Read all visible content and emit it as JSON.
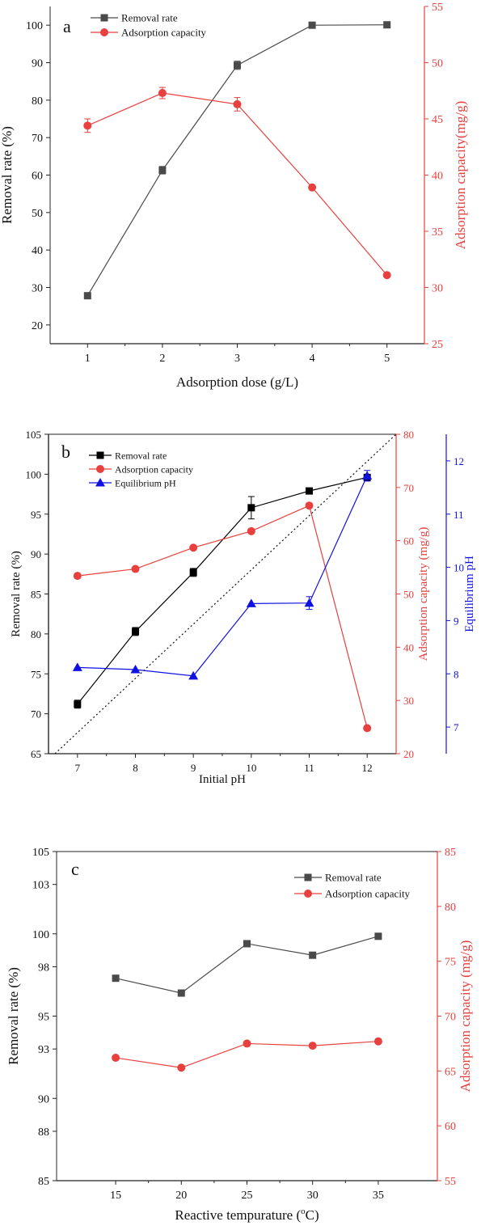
{
  "colors": {
    "removal_a": "#4a4a4a",
    "capacity_red": "#e8403e",
    "removal_b": "#000000",
    "equilibrium_blue": "#1010e0",
    "axis": "#222222"
  },
  "chart_data": [
    {
      "type": "line",
      "panel_label": "a",
      "xlabel": "Adsorption dose (g/L)",
      "ylabel": "Removal rate (%)",
      "y2label": "Adsorption capacity(mg/g)",
      "x": [
        1,
        2,
        3,
        4,
        5
      ],
      "xlim": [
        0.5,
        5.5
      ],
      "xticks": [
        "1",
        "2",
        "3",
        "4",
        "5"
      ],
      "ylim": [
        15,
        105
      ],
      "yticks": [
        "20",
        "30",
        "40",
        "50",
        "60",
        "70",
        "80",
        "90",
        "100"
      ],
      "y2lim": [
        25,
        55
      ],
      "y2ticks": [
        "25",
        "30",
        "35",
        "40",
        "45",
        "50",
        "55"
      ],
      "legend_position": "top-left",
      "series": [
        {
          "name": "Removal rate",
          "axis": "left",
          "marker": "square",
          "color": "#4a4a4a",
          "values": [
            27.8,
            61.3,
            89.3,
            100.0,
            100.1
          ],
          "errors": [
            0,
            1.0,
            1.1,
            0,
            0
          ]
        },
        {
          "name": "Adsorption capacity",
          "axis": "right",
          "marker": "circle",
          "color": "#e8403e",
          "values": [
            44.4,
            47.3,
            46.3,
            38.9,
            31.1
          ],
          "errors": [
            0.6,
            0.5,
            0.6,
            0,
            0
          ]
        }
      ]
    },
    {
      "type": "line",
      "panel_label": "b",
      "xlabel": "Initial pH",
      "ylabel": "Removal rate (%)",
      "y2label": "Adsorption capacity (mg/g)",
      "y3label": "Equilibrium pH",
      "x": [
        7,
        8,
        9,
        10,
        11,
        12
      ],
      "xlim": [
        6.5,
        12.5
      ],
      "xticks": [
        "7",
        "8",
        "9",
        "10",
        "11",
        "12"
      ],
      "ylim": [
        65,
        105
      ],
      "yticks": [
        "65",
        "70",
        "75",
        "80",
        "85",
        "90",
        "95",
        "100",
        "105"
      ],
      "y2lim": [
        20,
        80
      ],
      "y2ticks": [
        "20",
        "30",
        "40",
        "50",
        "60",
        "70",
        "80"
      ],
      "y3lim": [
        6.5,
        12.5
      ],
      "y3ticks": [
        "7",
        "8",
        "9",
        "10",
        "11",
        "12"
      ],
      "legend_position": "top-left",
      "reference_line": "dotted diagonal",
      "series": [
        {
          "name": "Removal rate",
          "axis": "left",
          "marker": "square",
          "color": "#000000",
          "values": [
            71.2,
            80.3,
            87.7,
            95.8,
            97.9,
            99.6
          ],
          "errors": [
            0.5,
            0.5,
            0.5,
            1.4,
            0,
            0
          ]
        },
        {
          "name": "Adsorption capacity",
          "axis": "right",
          "marker": "circle",
          "color": "#e8403e",
          "values": [
            53.4,
            54.7,
            58.7,
            61.8,
            66.6,
            24.8
          ],
          "errors": [
            0,
            0,
            0,
            0,
            0,
            0
          ]
        },
        {
          "name": "Equilibrium pH",
          "axis": "third",
          "marker": "triangle",
          "color": "#1010e0",
          "values": [
            8.12,
            8.08,
            7.96,
            9.32,
            9.33,
            11.72
          ],
          "errors": [
            0,
            0,
            0,
            0,
            0.12,
            0.1
          ]
        }
      ]
    },
    {
      "type": "line",
      "panel_label": "c",
      "xlabel": "Reactive tempurature (",
      "xlabel_unit": "C)",
      "xlabel_degree": "o",
      "ylabel": "Removal rate (%)",
      "y2label": "Adsorption capacity (mg/g)",
      "x": [
        15,
        20,
        25,
        30,
        35
      ],
      "xlim": [
        10.5,
        39.5
      ],
      "xticks": [
        "15",
        "20",
        "25",
        "30",
        "35"
      ],
      "ylim": [
        85,
        105
      ],
      "yticks": [
        "85",
        "88",
        "90",
        "93",
        "95",
        "98",
        "100",
        "103",
        "105"
      ],
      "y2lim": [
        55,
        85
      ],
      "y2ticks": [
        "55",
        "60",
        "65",
        "70",
        "75",
        "80",
        "85"
      ],
      "legend_position": "top-right",
      "series": [
        {
          "name": "Removal rate",
          "axis": "left",
          "marker": "square",
          "color": "#4a4a4a",
          "values": [
            97.3,
            96.4,
            99.4,
            98.7,
            99.85
          ],
          "errors": [
            0,
            0,
            0,
            0,
            0
          ]
        },
        {
          "name": "Adsorption capacity",
          "axis": "right",
          "marker": "circle",
          "color": "#e8403e",
          "values": [
            66.2,
            65.3,
            67.5,
            67.3,
            67.7
          ],
          "errors": [
            0,
            0,
            0,
            0,
            0
          ]
        }
      ]
    }
  ]
}
